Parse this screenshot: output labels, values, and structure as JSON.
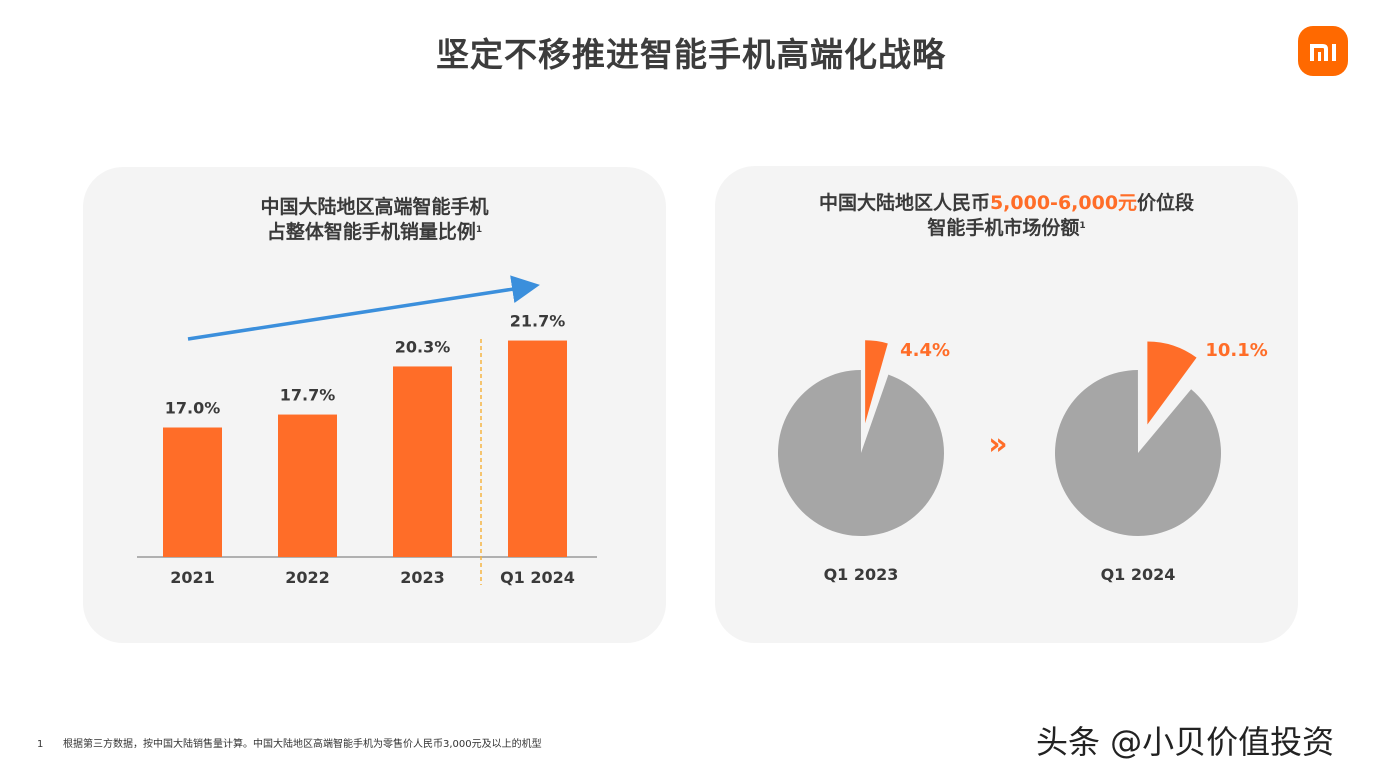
{
  "page": {
    "title": "坚定不移推进智能手机高端化战略",
    "footnote_number": "1",
    "footnote_text": "根据第三方数据，按中国大陆销售量计算。中国大陆地区高端智能手机为零售价人民币3,000元及以上的机型",
    "watermark": "头条 @小贝价值投资",
    "logo_text": "mi"
  },
  "colors": {
    "bar": "#ff6d28",
    "slice_highlight": "#ff6d28",
    "slice_rest": "#a6a6a6",
    "trend_arrow": "#3b8fdc",
    "divider": "#f5b342"
  },
  "left_card": {
    "title_line1": "中国大陆地区高端智能手机",
    "title_line2": "占整体智能手机销量比例",
    "title_sup": "1"
  },
  "right_card": {
    "title_line1_pre": "中国大陆地区人民币",
    "title_line1_accent": "5,000-6,000元",
    "title_line1_post": "价位段",
    "title_line2": "智能手机市场份额",
    "title_sup": "1",
    "chevron_icon": "double-chevron-right-icon",
    "chevron_glyph": "»"
  },
  "chart_data": [
    {
      "type": "bar",
      "categories": [
        "2021",
        "2022",
        "2023",
        "Q1 2024"
      ],
      "values": [
        17.0,
        17.7,
        20.3,
        21.7
      ],
      "labels": [
        "17.0%",
        "17.7%",
        "20.3%",
        "21.7%"
      ],
      "title": "中国大陆地区高端智能手机占整体智能手机销量比例",
      "unit": "%",
      "annotations": [
        "upward trend arrow",
        "dashed divider before Q1 2024"
      ]
    },
    {
      "type": "pie",
      "title": "中国大陆地区人民币5,000-6,000元价位段智能手机市场份额",
      "pies": [
        {
          "category": "Q1 2023",
          "value": 4.4,
          "label": "4.4%"
        },
        {
          "category": "Q1 2024",
          "value": 10.1,
          "label": "10.1%"
        }
      ]
    }
  ]
}
